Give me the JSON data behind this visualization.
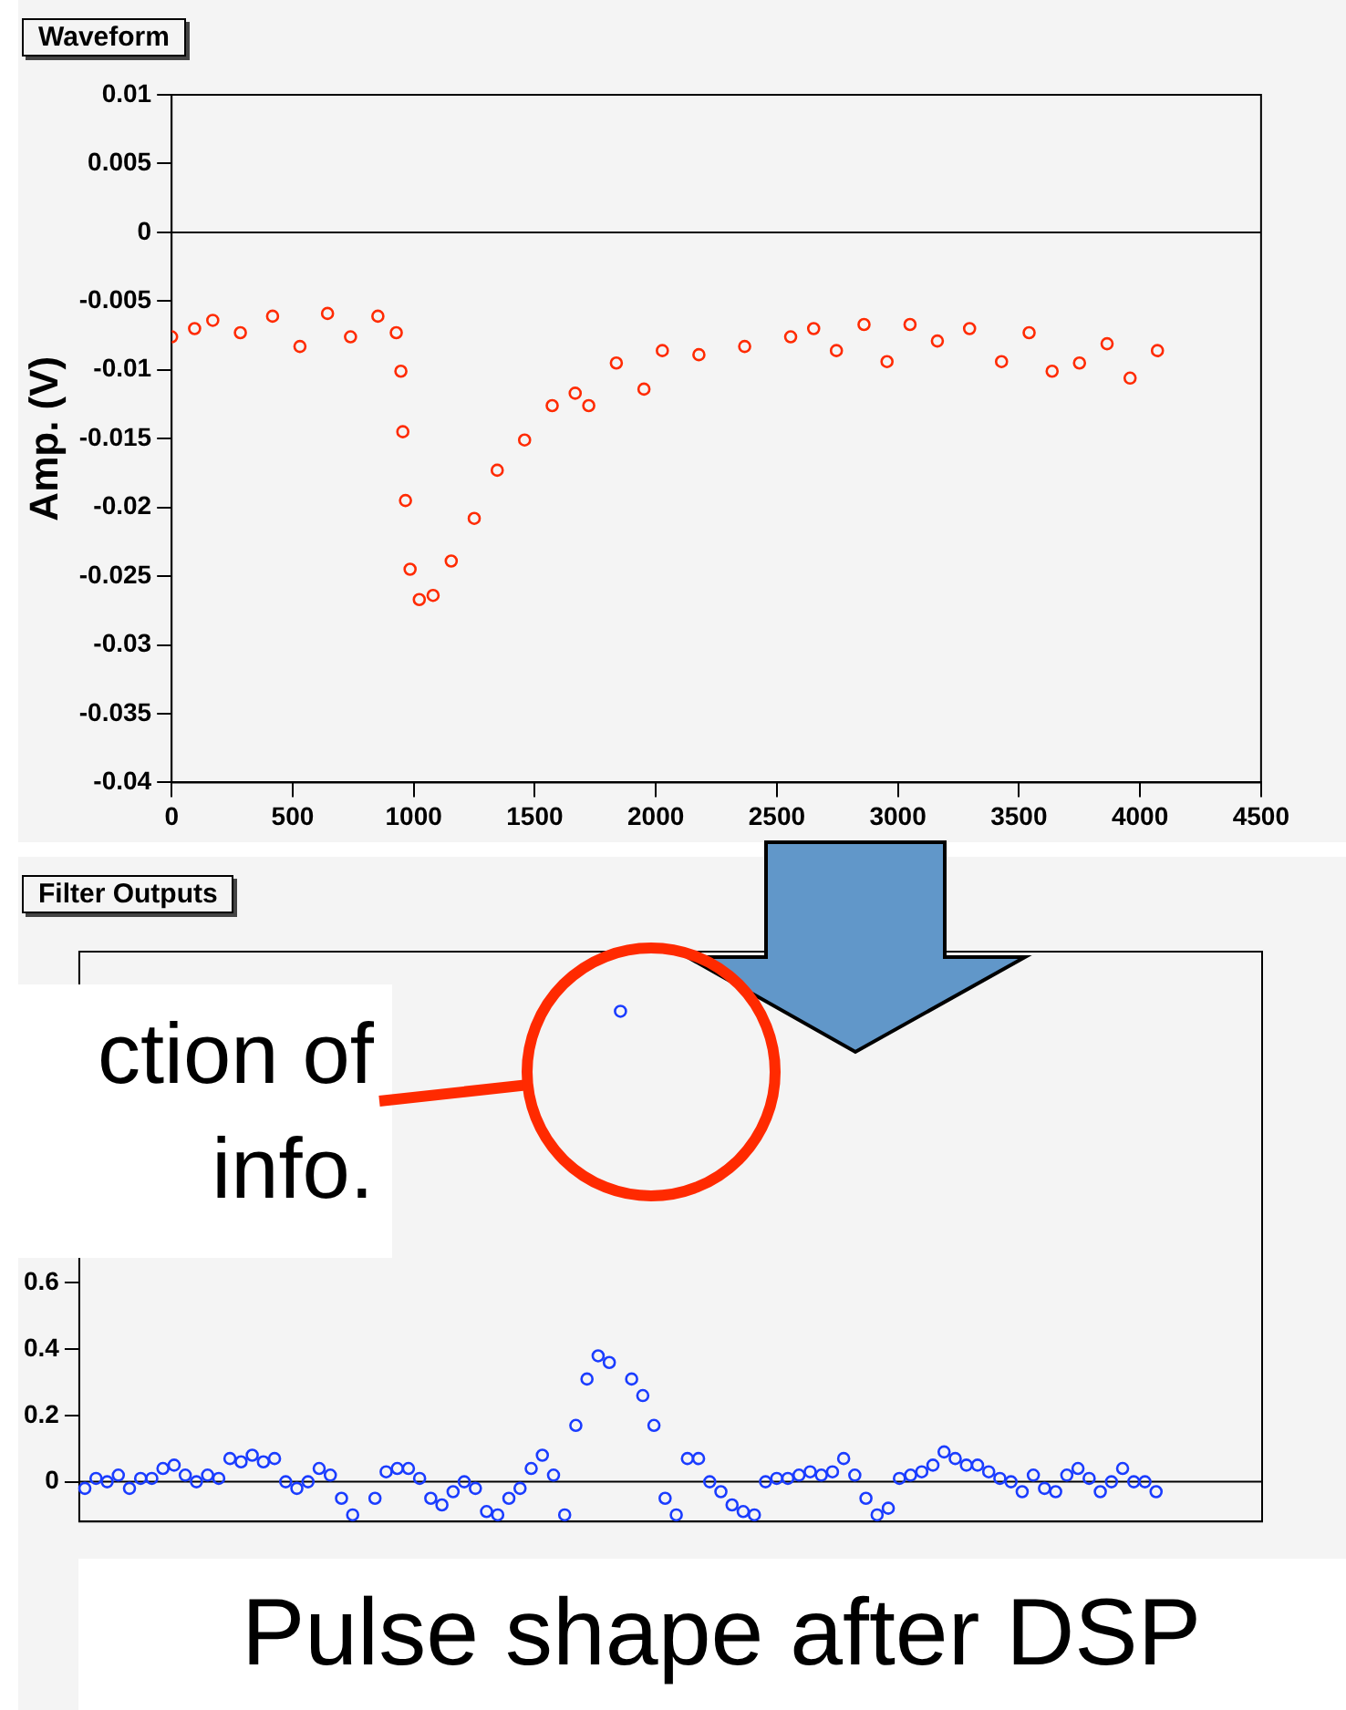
{
  "chart_data": [
    {
      "type": "scatter",
      "title": "Waveform",
      "ylabel": "Amp. (V)",
      "marker": "circle",
      "grid": false,
      "xlim": [
        0,
        4500
      ],
      "xticks": [
        0,
        500,
        1000,
        1500,
        2000,
        2500,
        3000,
        3500,
        4000,
        4500
      ],
      "ylim": [
        -0.04,
        0.01
      ],
      "yticks": [
        -0.04,
        -0.035,
        -0.03,
        -0.025,
        -0.02,
        -0.015,
        -0.01,
        -0.005,
        0,
        0.005,
        0.01
      ],
      "ref_lines": [
        {
          "axis": "y",
          "value": 0
        }
      ],
      "series": [
        {
          "color": "#ff2a00",
          "x": [
            0,
            95,
            170,
            284,
            417,
            530,
            644,
            739,
            852,
            928,
            947,
            955,
            966,
            985,
            1023,
            1080,
            1155,
            1250,
            1345,
            1458,
            1572,
            1667,
            1723,
            1837,
            1951,
            2027,
            2178,
            2367,
            2557,
            2652,
            2746,
            2860,
            2955,
            3050,
            3163,
            3296,
            3428,
            3542,
            3637,
            3750,
            3864,
            3959,
            4072
          ],
          "values": [
            -0.0076,
            -0.007,
            -0.0064,
            -0.0073,
            -0.0061,
            -0.0083,
            -0.0059,
            -0.0076,
            -0.0061,
            -0.0073,
            -0.0101,
            -0.0145,
            -0.0195,
            -0.0245,
            -0.0267,
            -0.0264,
            -0.0239,
            -0.0208,
            -0.0173,
            -0.0151,
            -0.0126,
            -0.0117,
            -0.0126,
            -0.0095,
            -0.0114,
            -0.0086,
            -0.0089,
            -0.0083,
            -0.0076,
            -0.007,
            -0.0086,
            -0.0067,
            -0.0094,
            -0.0067,
            -0.0079,
            -0.007,
            -0.0094,
            -0.0073,
            -0.0101,
            -0.0095,
            -0.0081,
            -0.0106,
            -0.0086
          ]
        }
      ]
    },
    {
      "type": "scatter",
      "title": "Filter Outputs",
      "marker": "circle",
      "grid": false,
      "tick_labels": "y",
      "categories": [
        null,
        null,
        null,
        null,
        null,
        null,
        null,
        null,
        null,
        null,
        null,
        null,
        null,
        null,
        null,
        null,
        null,
        null,
        null,
        null,
        null,
        null,
        null,
        null,
        null,
        null,
        null,
        null,
        null,
        null,
        null,
        null,
        null,
        null,
        null,
        null,
        null,
        null,
        null,
        null,
        null,
        null,
        null,
        null,
        null,
        null,
        null,
        null,
        null,
        null,
        null,
        null,
        null,
        null,
        null,
        null,
        null,
        null,
        null,
        null,
        null,
        null,
        null,
        null,
        null,
        null,
        null,
        null,
        null,
        null,
        null,
        null,
        null,
        null,
        null,
        null,
        null,
        null,
        null,
        null,
        null,
        null,
        null,
        null,
        null,
        null,
        null,
        null,
        null,
        null,
        null,
        null,
        null,
        null,
        null,
        null,
        null,
        null,
        null,
        null,
        null,
        null,
        null,
        null,
        null,
        null
      ],
      "ylim": [
        -0.12,
        1.6
      ],
      "yticks": [
        0,
        0.2,
        0.4,
        0.6
      ],
      "ref_lines": [
        {
          "axis": "y",
          "value": 0
        }
      ],
      "annotations": [
        "ction of info.",
        "Pulse shape after DSP"
      ],
      "series": [
        {
          "color": "#1a3cff",
          "values": [
            -0.02,
            0.01,
            0,
            0.02,
            -0.02,
            0.01,
            0.01,
            0.04,
            0.05,
            0.02,
            0,
            0.02,
            0.01,
            0.07,
            0.06,
            0.08,
            0.06,
            0.07,
            0,
            -0.02,
            0,
            0.04,
            0.02,
            -0.05,
            -0.1,
            null,
            -0.05,
            0.03,
            0.04,
            0.04,
            0.01,
            -0.05,
            -0.07,
            -0.03,
            0,
            -0.02,
            -0.09,
            -0.1,
            -0.05,
            -0.02,
            0.04,
            0.08,
            0.02,
            -0.1,
            0.17,
            0.31,
            0.38,
            0.36,
            1.42,
            0.31,
            0.26,
            0.17,
            -0.05,
            -0.1,
            0.07,
            0.07,
            0,
            -0.03,
            -0.07,
            -0.09,
            -0.1,
            0,
            0.01,
            0.01,
            0.02,
            0.03,
            0.02,
            0.03,
            0.07,
            0.02,
            -0.05,
            -0.1,
            -0.08,
            0.01,
            0.02,
            0.03,
            0.05,
            0.09,
            0.07,
            0.05,
            0.05,
            0.03,
            0.01,
            0,
            -0.03,
            0.02,
            -0.02,
            -0.03,
            0.02,
            0.04,
            0.01,
            -0.03,
            0,
            0.04,
            0,
            0,
            -0.03,
            null,
            null,
            null,
            null,
            null,
            null,
            null,
            null,
            null
          ]
        }
      ]
    }
  ]
}
